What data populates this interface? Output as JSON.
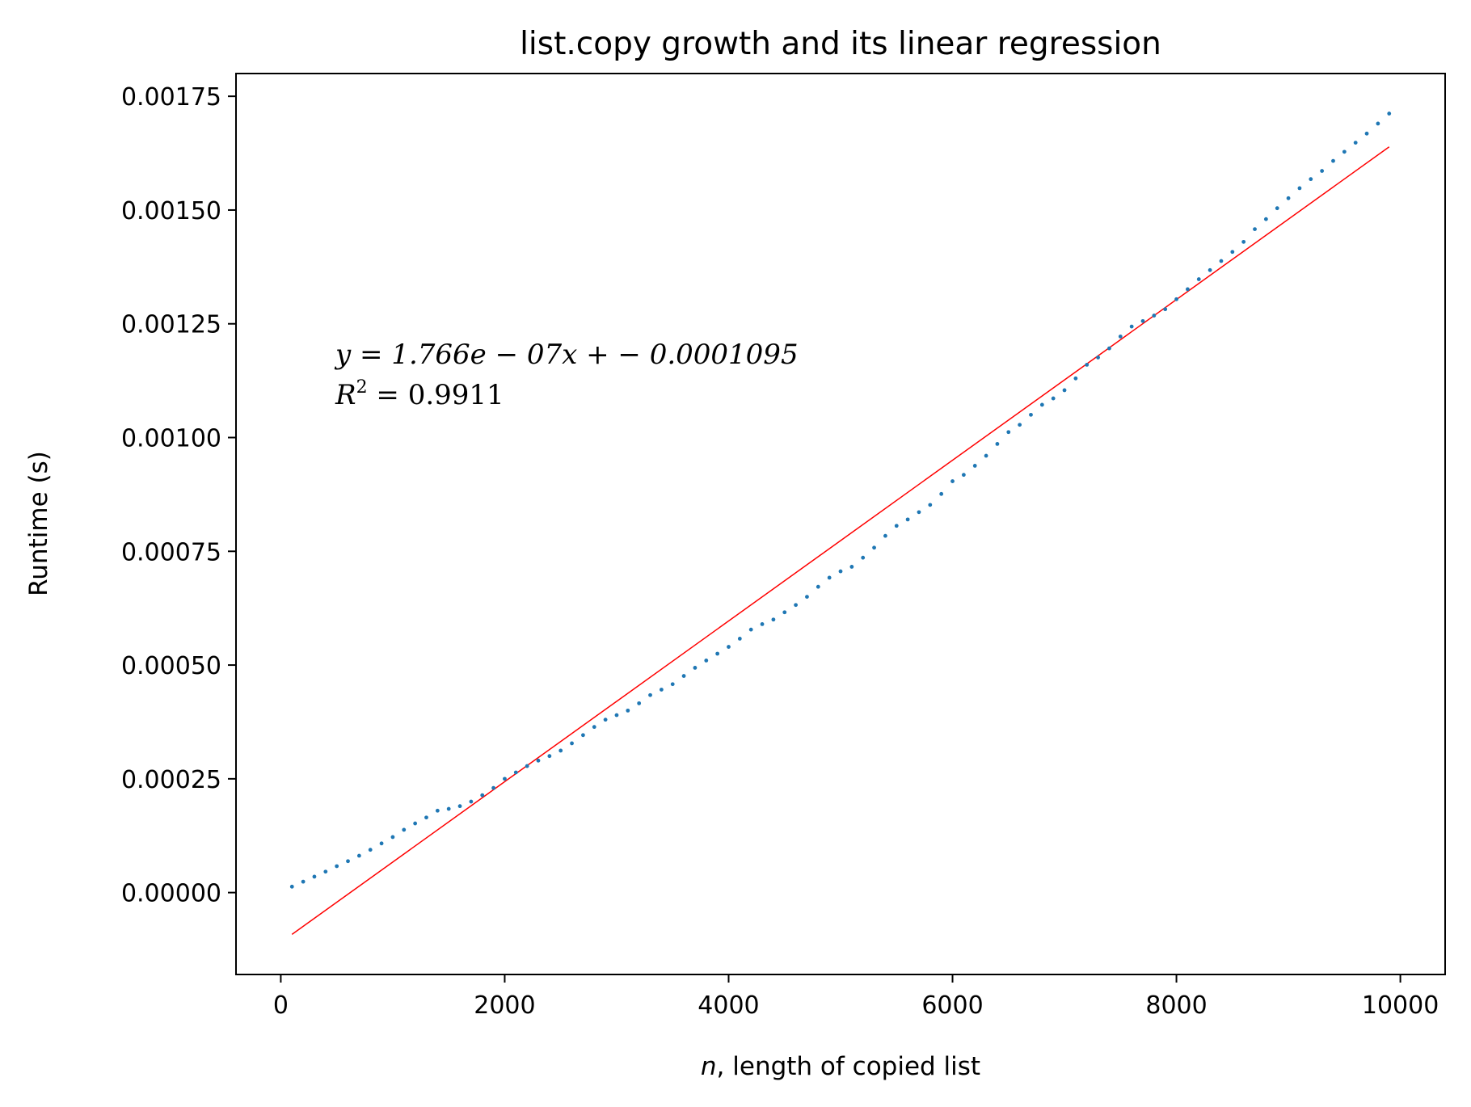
{
  "chart_data": {
    "type": "scatter",
    "title": "list.copy growth and its linear regression",
    "xlabel_var": "n",
    "xlabel_rest": ", length of copied list",
    "ylabel": "Runtime (s)",
    "xlim": [
      -400,
      10400
    ],
    "ylim": [
      -0.00018,
      0.0018
    ],
    "xticks": [
      0,
      2000,
      4000,
      6000,
      8000,
      10000
    ],
    "xtick_labels": [
      "0",
      "2000",
      "4000",
      "6000",
      "8000",
      "10000"
    ],
    "yticks": [
      0,
      0.00025,
      0.0005,
      0.00075,
      0.001,
      0.00125,
      0.0015,
      0.00175
    ],
    "ytick_labels": [
      "0.00000",
      "0.00025",
      "0.00050",
      "0.00075",
      "0.00100",
      "0.00125",
      "0.00150",
      "0.00175"
    ],
    "grid": false,
    "series": [
      {
        "color": "#1f77b4",
        "marker": "point",
        "x": [
          100,
          200,
          300,
          400,
          500,
          600,
          700,
          800,
          900,
          1000,
          1100,
          1200,
          1300,
          1400,
          1500,
          1600,
          1700,
          1800,
          1900,
          2000,
          2100,
          2200,
          2300,
          2400,
          2500,
          2600,
          2700,
          2800,
          2900,
          3000,
          3100,
          3200,
          3300,
          3400,
          3500,
          3600,
          3700,
          3800,
          3900,
          4000,
          4100,
          4200,
          4300,
          4400,
          4500,
          4600,
          4700,
          4800,
          4900,
          5000,
          5100,
          5200,
          5300,
          5400,
          5500,
          5600,
          5700,
          5800,
          5900,
          6000,
          6100,
          6200,
          6300,
          6400,
          6500,
          6600,
          6700,
          6800,
          6900,
          7000,
          7100,
          7200,
          7300,
          7400,
          7500,
          7600,
          7700,
          7800,
          7900,
          8000,
          8100,
          8200,
          8300,
          8400,
          8500,
          8600,
          8700,
          8800,
          8900,
          9000,
          9100,
          9200,
          9300,
          9400,
          9500,
          9600,
          9700,
          9800,
          9900
        ],
        "y": [
          1.3e-05,
          2.4e-05,
          3.5e-05,
          4.6e-05,
          5.8e-05,
          6.9e-05,
          8.1e-05,
          9.4e-05,
          0.000108,
          0.000122,
          0.000138,
          0.000152,
          0.000165,
          0.00018,
          0.000184,
          0.00019,
          0.0002,
          0.000214,
          0.00023,
          0.00025,
          0.000264,
          0.000278,
          0.00029,
          0.0003,
          0.000312,
          0.000328,
          0.000346,
          0.000364,
          0.00038,
          0.00039,
          0.0004,
          0.000416,
          0.000434,
          0.000446,
          0.000458,
          0.000476,
          0.000494,
          0.00051,
          0.000525,
          0.00054,
          0.000558,
          0.000578,
          0.00059,
          0.0006,
          0.000616,
          0.000632,
          0.00065,
          0.000672,
          0.000692,
          0.000706,
          0.000716,
          0.000736,
          0.000758,
          0.000784,
          0.000806,
          0.00082,
          0.000836,
          0.000852,
          0.000876,
          0.000904,
          0.000918,
          0.000938,
          0.00096,
          0.000986,
          0.001012,
          0.001028,
          0.00105,
          0.001072,
          0.001086,
          0.001104,
          0.00113,
          0.00116,
          0.001176,
          0.001196,
          0.001222,
          0.001244,
          0.001256,
          0.001268,
          0.001282,
          0.001304,
          0.001326,
          0.001348,
          0.001368,
          0.001388,
          0.001408,
          0.00143,
          0.001458,
          0.00148,
          0.001504,
          0.001526,
          0.001548,
          0.001568,
          0.001586,
          0.001608,
          0.001628,
          0.001648,
          0.001668,
          0.00169,
          0.001712
        ]
      }
    ],
    "regression": {
      "color": "#ff0000",
      "slope": 1.766e-07,
      "intercept": -0.0001095,
      "x_range": [
        100,
        9900
      ]
    },
    "annotation": {
      "line1": "y = 1.766e − 07x + − 0.0001095",
      "line2_prefix": "R",
      "line2_sup": "2",
      "line2_rest": " = 0.9911"
    }
  }
}
